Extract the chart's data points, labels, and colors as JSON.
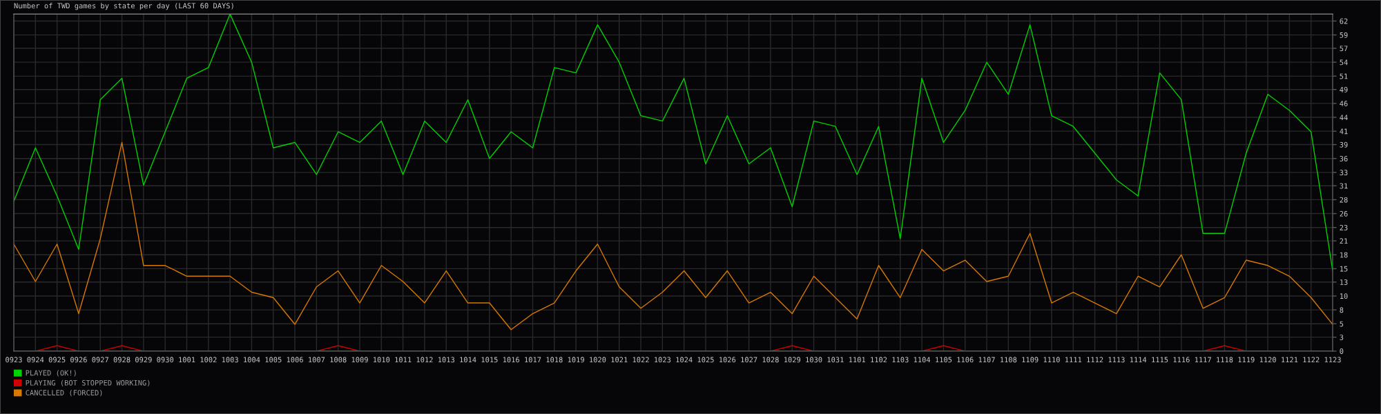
{
  "chart_data": {
    "type": "line",
    "title": "Number of TWD games by state per day (LAST 60 DAYS)",
    "categories": [
      "0923",
      "0924",
      "0925",
      "0926",
      "0927",
      "0928",
      "0929",
      "0930",
      "1001",
      "1002",
      "1003",
      "1004",
      "1005",
      "1006",
      "1007",
      "1008",
      "1009",
      "1010",
      "1011",
      "1012",
      "1013",
      "1014",
      "1015",
      "1016",
      "1017",
      "1018",
      "1019",
      "1020",
      "1021",
      "1022",
      "1023",
      "1024",
      "1025",
      "1026",
      "1027",
      "1028",
      "1029",
      "1030",
      "1031",
      "1101",
      "1102",
      "1103",
      "1104",
      "1105",
      "1106",
      "1107",
      "1108",
      "1109",
      "1110",
      "1111",
      "1112",
      "1113",
      "1114",
      "1115",
      "1116",
      "1117",
      "1118",
      "1119",
      "1120",
      "1121",
      "1122",
      "1123"
    ],
    "series": [
      {
        "name": "PLAYED (OK!)",
        "color": "#00d200",
        "values": [
          28,
          38,
          29,
          19,
          47,
          51,
          31,
          41,
          51,
          53,
          63,
          54,
          38,
          39,
          33,
          41,
          39,
          43,
          33,
          43,
          39,
          47,
          36,
          41,
          38,
          53,
          52,
          61,
          54,
          44,
          43,
          51,
          35,
          44,
          35,
          38,
          27,
          43,
          42,
          33,
          42,
          21,
          51,
          39,
          45,
          54,
          48,
          61,
          44,
          42,
          37,
          32,
          29,
          52,
          47,
          22,
          22,
          37,
          48,
          45,
          41,
          15
        ]
      },
      {
        "name": "PLAYING (BOT STOPPED WORKING)",
        "color": "#d00000",
        "values": [
          null,
          0,
          1,
          0,
          0,
          1,
          0,
          null,
          null,
          null,
          null,
          null,
          null,
          null,
          0,
          1,
          0,
          null,
          null,
          null,
          null,
          null,
          null,
          null,
          null,
          null,
          null,
          null,
          null,
          null,
          null,
          null,
          null,
          null,
          null,
          0,
          1,
          0,
          null,
          null,
          null,
          null,
          0,
          1,
          0,
          null,
          null,
          null,
          null,
          null,
          null,
          null,
          null,
          null,
          null,
          0,
          1,
          0,
          null,
          null,
          null,
          null
        ]
      },
      {
        "name": "CANCELLED (FORCED)",
        "color": "#d87800",
        "values": [
          20,
          13,
          20,
          7,
          21,
          39,
          16,
          16,
          14,
          14,
          14,
          11,
          10,
          5,
          12,
          15,
          9,
          16,
          13,
          9,
          15,
          9,
          9,
          4,
          7,
          9,
          15,
          20,
          12,
          8,
          11,
          15,
          10,
          15,
          9,
          11,
          7,
          14,
          10,
          6,
          16,
          10,
          19,
          15,
          17,
          13,
          14,
          22,
          9,
          11,
          9,
          7,
          14,
          12,
          18,
          8,
          10,
          17,
          16,
          14,
          10,
          5
        ]
      }
    ],
    "ylim": [
      0,
      63
    ],
    "yticks": [
      0,
      {
        "value": 2.6,
        "label": "3"
      },
      {
        "value": 5.1,
        "label": "5"
      },
      {
        "value": 7.7,
        "label": "8"
      },
      {
        "value": 10.3,
        "label": "10"
      },
      {
        "value": 12.9,
        "label": "13"
      },
      {
        "value": 15.4,
        "label": "15"
      },
      18,
      {
        "value": 20.6,
        "label": "21"
      },
      {
        "value": 23.1,
        "label": "23"
      },
      {
        "value": 25.7,
        "label": "26"
      },
      {
        "value": 28.3,
        "label": "28"
      },
      {
        "value": 30.9,
        "label": "31"
      },
      {
        "value": 33.4,
        "label": "33"
      },
      36,
      {
        "value": 38.6,
        "label": "39"
      },
      {
        "value": 41.1,
        "label": "41"
      },
      {
        "value": 43.7,
        "label": "44"
      },
      {
        "value": 46.3,
        "label": "46"
      },
      {
        "value": 48.9,
        "label": "49"
      },
      {
        "value": 51.4,
        "label": "51"
      },
      54,
      {
        "value": 56.6,
        "label": "57"
      },
      {
        "value": 59.1,
        "label": "59"
      },
      {
        "value": 61.7,
        "label": "62"
      }
    ],
    "grid": true,
    "legend": "bottom left",
    "marker": "none",
    "line_style": "solid"
  }
}
